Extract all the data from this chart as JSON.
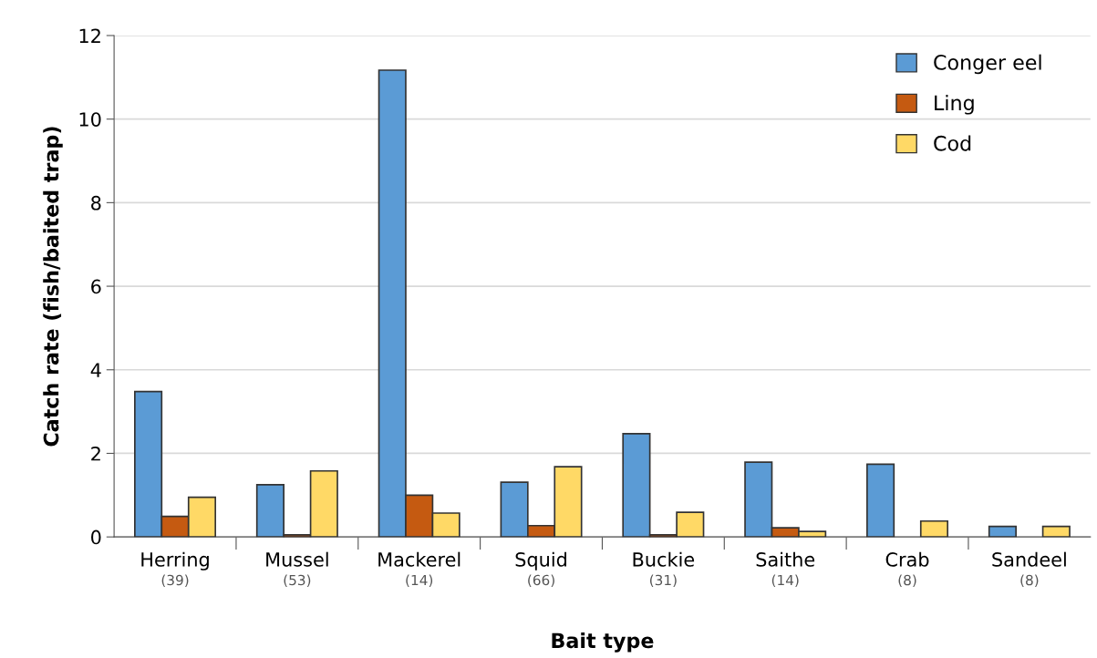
{
  "chart_data": {
    "type": "bar",
    "xlabel": "Bait type",
    "ylabel": "Catch rate (fish/baited trap)",
    "categories": [
      "Herring\n(39)",
      "Mussel\n(53)",
      "Mackerel\n(14)",
      "Squid\n(66)",
      "Buckie\n(31)",
      "Saithe\n(14)",
      "Crab\n(8)",
      "Sandeel\n(8)"
    ],
    "series": [
      {
        "name": "Conger eel",
        "color": "#5b9bd5",
        "values": [
          3.48,
          1.25,
          11.17,
          1.31,
          2.47,
          1.79,
          1.74,
          0.25
        ]
      },
      {
        "name": "Ling",
        "color": "#c55a11",
        "values": [
          0.49,
          0.05,
          1.0,
          0.27,
          0.05,
          0.22,
          null,
          null
        ]
      },
      {
        "name": "Cod",
        "color": "#ffd966",
        "values": [
          0.95,
          1.58,
          0.57,
          1.68,
          0.59,
          0.13,
          0.38,
          0.25
        ]
      }
    ],
    "ylim": [
      0,
      12
    ],
    "yticks": [
      0,
      2,
      4,
      6,
      8,
      10,
      12
    ],
    "grid": "y",
    "legend": "top right"
  }
}
